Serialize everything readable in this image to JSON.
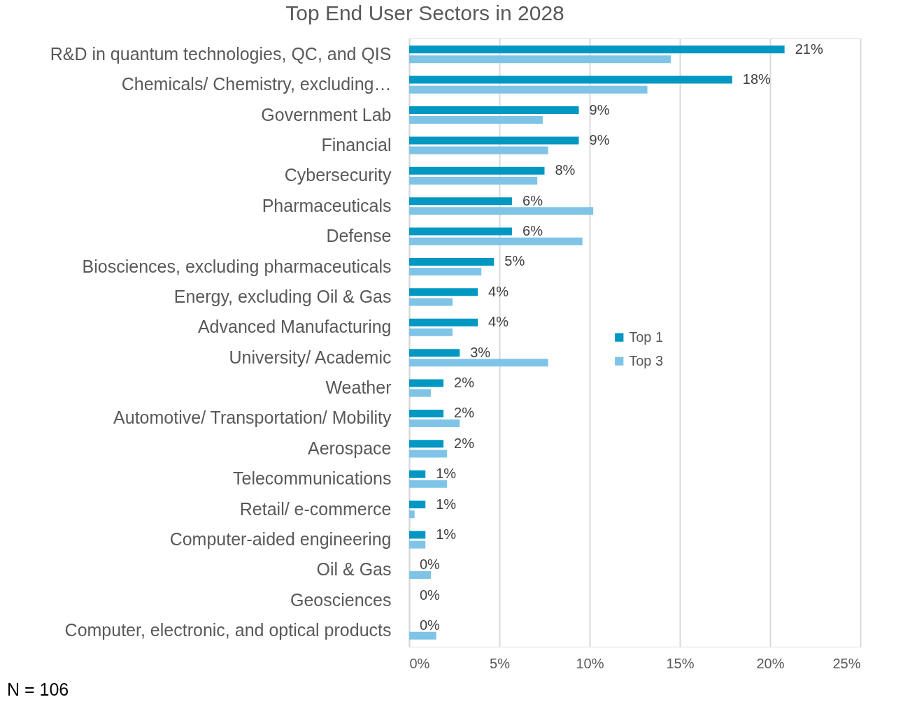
{
  "chart_data": {
    "type": "bar",
    "orientation": "horizontal",
    "title": "Top End User Sectors in 2028",
    "categories": [
      "R&D in quantum technologies, QC, and QIS",
      "Chemicals/ Chemistry, excluding…",
      "Government Lab",
      "Financial",
      "Cybersecurity",
      "Pharmaceuticals",
      "Defense",
      "Biosciences, excluding pharmaceuticals",
      "Energy, excluding Oil & Gas",
      "Advanced Manufacturing",
      "University/ Academic",
      "Weather",
      "Automotive/ Transportation/ Mobility",
      "Aerospace",
      "Telecommunications",
      "Retail/ e-commerce",
      "Computer-aided engineering",
      "Oil & Gas",
      "Geosciences",
      "Computer, electronic, and optical products"
    ],
    "series": [
      {
        "name": "Top 1",
        "color": "#0097c2",
        "values": [
          20.8,
          17.9,
          9.4,
          9.4,
          7.5,
          5.7,
          5.7,
          4.7,
          3.8,
          3.8,
          2.8,
          1.9,
          1.9,
          1.9,
          0.9,
          0.9,
          0.9,
          0,
          0,
          0
        ],
        "value_labels": [
          "21%",
          "18%",
          "9%",
          "9%",
          "8%",
          "6%",
          "6%",
          "5%",
          "4%",
          "4%",
          "3%",
          "2%",
          "2%",
          "2%",
          "1%",
          "1%",
          "1%",
          "0%",
          "0%",
          "0%"
        ]
      },
      {
        "name": "Top 3",
        "color": "#7fc4e6",
        "values": [
          14.5,
          13.2,
          7.4,
          7.7,
          7.1,
          10.2,
          9.6,
          4.0,
          2.4,
          2.4,
          7.7,
          1.2,
          2.8,
          2.1,
          2.1,
          0.3,
          0.9,
          1.2,
          0,
          1.5
        ]
      }
    ],
    "xlim": [
      0,
      25
    ],
    "xticks": [
      {
        "value": 0,
        "label": "0%"
      },
      {
        "value": 5,
        "label": "5%"
      },
      {
        "value": 10,
        "label": "10%"
      },
      {
        "value": 15,
        "label": "15%"
      },
      {
        "value": 20,
        "label": "20%"
      },
      {
        "value": 25,
        "label": "25%"
      }
    ],
    "grid": "x",
    "legend": "right",
    "annotations": [
      "N = 106"
    ]
  }
}
